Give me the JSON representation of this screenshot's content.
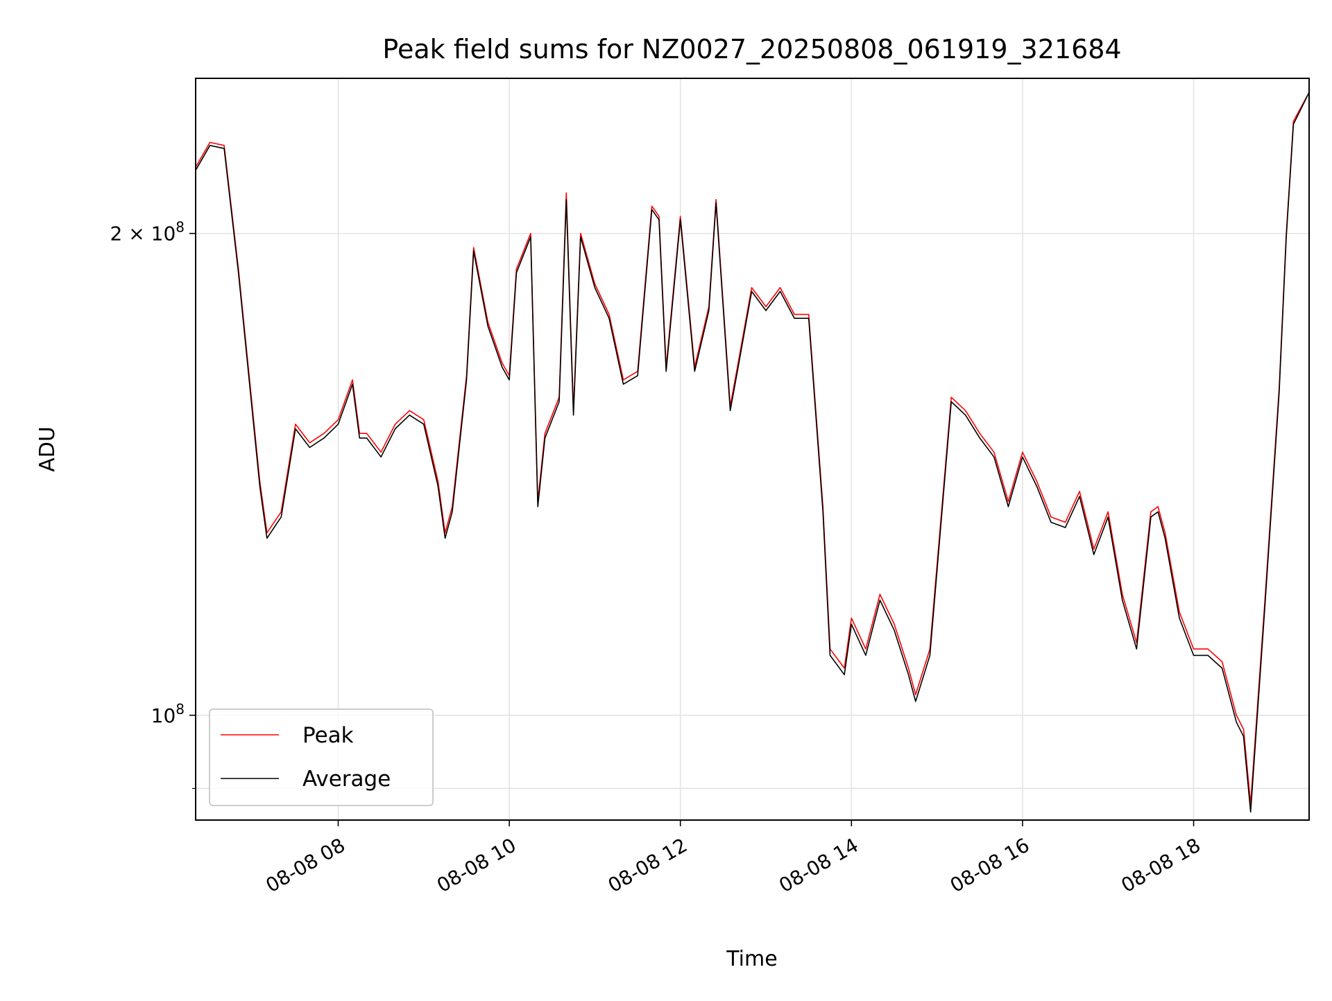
{
  "chart_data": {
    "type": "line",
    "title": "Peak field sums for NZ0027_20250808_061919_321684",
    "xlabel": "Time",
    "ylabel": "ADU",
    "y_scale": "log",
    "ylim": [
      86000000,
      250000000
    ],
    "xlim": [
      "08-08 06:20",
      "08-08 19:21"
    ],
    "grid": true,
    "legend_position": "lower-left",
    "x_ticks": [
      {
        "t": "08-08 08:00",
        "label": "08-08 08"
      },
      {
        "t": "08-08 10:00",
        "label": "08-08 10"
      },
      {
        "t": "08-08 12:00",
        "label": "08-08 12"
      },
      {
        "t": "08-08 14:00",
        "label": "08-08 14"
      },
      {
        "t": "08-08 16:00",
        "label": "08-08 16"
      },
      {
        "t": "08-08 18:00",
        "label": "08-08 18"
      }
    ],
    "y_ticks": [
      {
        "value": 100000000,
        "base": "10",
        "exp": "8",
        "mult": ""
      },
      {
        "value": 200000000,
        "base": "10",
        "exp": "8",
        "mult": "2 × "
      }
    ],
    "y_minor_ticks": [
      90000000
    ],
    "series": [
      {
        "name": "Peak",
        "color": "#ff0000",
        "x": [
          "08-08 06:20",
          "08-08 06:30",
          "08-08 06:40",
          "08-08 06:50",
          "08-08 07:00",
          "08-08 07:05",
          "08-08 07:10",
          "08-08 07:20",
          "08-08 07:30",
          "08-08 07:40",
          "08-08 07:50",
          "08-08 08:00",
          "08-08 08:10",
          "08-08 08:15",
          "08-08 08:20",
          "08-08 08:30",
          "08-08 08:40",
          "08-08 08:50",
          "08-08 09:00",
          "08-08 09:10",
          "08-08 09:15",
          "08-08 09:20",
          "08-08 09:30",
          "08-08 09:35",
          "08-08 09:45",
          "08-08 09:55",
          "08-08 10:00",
          "08-08 10:05",
          "08-08 10:15",
          "08-08 10:20",
          "08-08 10:25",
          "08-08 10:35",
          "08-08 10:40",
          "08-08 10:45",
          "08-08 10:50",
          "08-08 11:00",
          "08-08 11:10",
          "08-08 11:20",
          "08-08 11:30",
          "08-08 11:40",
          "08-08 11:45",
          "08-08 11:50",
          "08-08 12:00",
          "08-08 12:10",
          "08-08 12:20",
          "08-08 12:25",
          "08-08 12:35",
          "08-08 12:40",
          "08-08 12:50",
          "08-08 13:00",
          "08-08 13:10",
          "08-08 13:20",
          "08-08 13:30",
          "08-08 13:40",
          "08-08 13:45",
          "08-08 13:55",
          "08-08 14:00",
          "08-08 14:10",
          "08-08 14:20",
          "08-08 14:30",
          "08-08 14:40",
          "08-08 14:45",
          "08-08 14:55",
          "08-08 15:05",
          "08-08 15:10",
          "08-08 15:20",
          "08-08 15:30",
          "08-08 15:40",
          "08-08 15:50",
          "08-08 16:00",
          "08-08 16:10",
          "08-08 16:20",
          "08-08 16:30",
          "08-08 16:40",
          "08-08 16:50",
          "08-08 17:00",
          "08-08 17:10",
          "08-08 17:20",
          "08-08 17:30",
          "08-08 17:35",
          "08-08 17:40",
          "08-08 17:50",
          "08-08 18:00",
          "08-08 18:10",
          "08-08 18:20",
          "08-08 18:30",
          "08-08 18:35",
          "08-08 18:40",
          "08-08 18:50",
          "08-08 19:00",
          "08-08 19:05",
          "08-08 19:10",
          "08-08 19:21"
        ],
        "values": [
          220000000,
          228000000,
          227000000,
          190000000,
          155000000,
          140000000,
          130000000,
          134000000,
          152000000,
          148000000,
          150000000,
          153000000,
          162000000,
          150000000,
          150000000,
          146000000,
          152000000,
          155000000,
          153000000,
          140000000,
          130000000,
          135000000,
          163000000,
          196000000,
          176000000,
          166000000,
          163000000,
          190000000,
          200000000,
          136000000,
          150000000,
          158000000,
          212000000,
          155000000,
          200000000,
          186000000,
          178000000,
          162000000,
          164000000,
          208000000,
          205000000,
          165000000,
          205000000,
          165000000,
          180000000,
          210000000,
          156000000,
          165000000,
          185000000,
          180000000,
          185000000,
          178000000,
          178000000,
          135000000,
          110000000,
          107000000,
          115000000,
          110000000,
          119000000,
          114000000,
          107000000,
          103000000,
          110000000,
          140000000,
          158000000,
          155000000,
          150000000,
          146000000,
          136000000,
          146000000,
          140000000,
          133000000,
          132000000,
          138000000,
          127000000,
          134000000,
          119000000,
          111000000,
          134000000,
          135000000,
          130000000,
          116000000,
          110000000,
          110000000,
          108000000,
          100000000,
          98000000,
          88000000,
          118000000,
          160000000,
          200000000,
          235000000,
          245000000
        ]
      },
      {
        "name": "Average",
        "color": "#000000",
        "x": [
          "08-08 06:20",
          "08-08 06:30",
          "08-08 06:40",
          "08-08 06:50",
          "08-08 07:00",
          "08-08 07:05",
          "08-08 07:10",
          "08-08 07:20",
          "08-08 07:30",
          "08-08 07:40",
          "08-08 07:50",
          "08-08 08:00",
          "08-08 08:10",
          "08-08 08:15",
          "08-08 08:20",
          "08-08 08:30",
          "08-08 08:40",
          "08-08 08:50",
          "08-08 09:00",
          "08-08 09:10",
          "08-08 09:15",
          "08-08 09:20",
          "08-08 09:30",
          "08-08 09:35",
          "08-08 09:45",
          "08-08 09:55",
          "08-08 10:00",
          "08-08 10:05",
          "08-08 10:15",
          "08-08 10:20",
          "08-08 10:25",
          "08-08 10:35",
          "08-08 10:40",
          "08-08 10:45",
          "08-08 10:50",
          "08-08 11:00",
          "08-08 11:10",
          "08-08 11:20",
          "08-08 11:30",
          "08-08 11:40",
          "08-08 11:45",
          "08-08 11:50",
          "08-08 12:00",
          "08-08 12:10",
          "08-08 12:20",
          "08-08 12:25",
          "08-08 12:35",
          "08-08 12:40",
          "08-08 12:50",
          "08-08 13:00",
          "08-08 13:10",
          "08-08 13:20",
          "08-08 13:30",
          "08-08 13:40",
          "08-08 13:45",
          "08-08 13:55",
          "08-08 14:00",
          "08-08 14:10",
          "08-08 14:20",
          "08-08 14:30",
          "08-08 14:40",
          "08-08 14:45",
          "08-08 14:55",
          "08-08 15:05",
          "08-08 15:10",
          "08-08 15:20",
          "08-08 15:30",
          "08-08 15:40",
          "08-08 15:50",
          "08-08 16:00",
          "08-08 16:10",
          "08-08 16:20",
          "08-08 16:30",
          "08-08 16:40",
          "08-08 16:50",
          "08-08 17:00",
          "08-08 17:10",
          "08-08 17:20",
          "08-08 17:30",
          "08-08 17:35",
          "08-08 17:40",
          "08-08 17:50",
          "08-08 18:00",
          "08-08 18:10",
          "08-08 18:20",
          "08-08 18:30",
          "08-08 18:35",
          "08-08 18:40",
          "08-08 18:50",
          "08-08 19:00",
          "08-08 19:05",
          "08-08 19:10",
          "08-08 19:21"
        ],
        "values": [
          219000000,
          227000000,
          226000000,
          189000000,
          154000000,
          139000000,
          129000000,
          133000000,
          151000000,
          147000000,
          149000000,
          152000000,
          161000000,
          149000000,
          149000000,
          145000000,
          151000000,
          154000000,
          152000000,
          139000000,
          129000000,
          134000000,
          162000000,
          195000000,
          175000000,
          165000000,
          162000000,
          189000000,
          199000000,
          135000000,
          149000000,
          157000000,
          210000000,
          154000000,
          199000000,
          185000000,
          177000000,
          161000000,
          163000000,
          207000000,
          204000000,
          164000000,
          204000000,
          164000000,
          179000000,
          209000000,
          155000000,
          164000000,
          184000000,
          179000000,
          184000000,
          177000000,
          177000000,
          134000000,
          109000000,
          106000000,
          114000000,
          109000000,
          118000000,
          113000000,
          106000000,
          102000000,
          109000000,
          139000000,
          157000000,
          154000000,
          149000000,
          145000000,
          135000000,
          145000000,
          139000000,
          132000000,
          131000000,
          137000000,
          126000000,
          133000000,
          118000000,
          110000000,
          133000000,
          134000000,
          129000000,
          115000000,
          109000000,
          109000000,
          107000000,
          99000000,
          97000000,
          87000000,
          117000000,
          159000000,
          199000000,
          234000000,
          245000000
        ]
      }
    ]
  }
}
